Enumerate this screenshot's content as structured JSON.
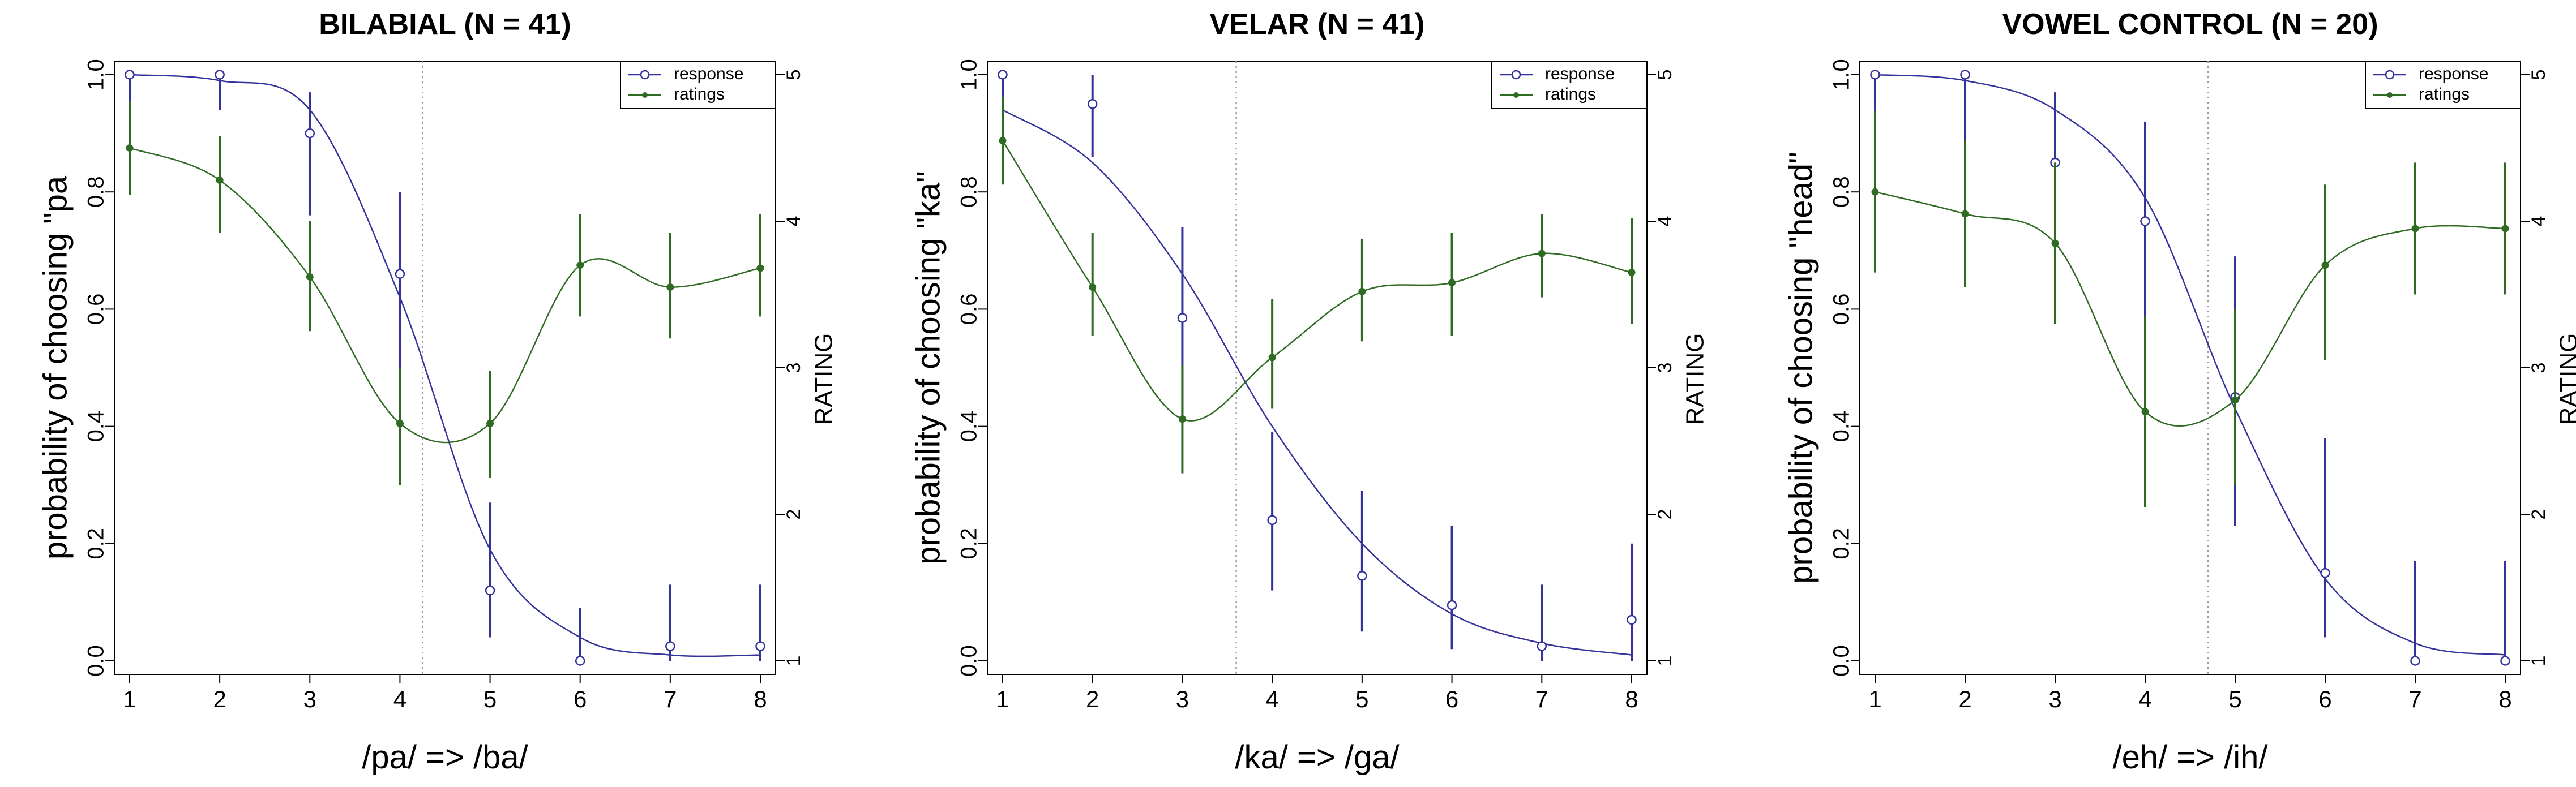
{
  "chart_data": [
    {
      "type": "line",
      "title": "BILABIAL  (N = 41)",
      "xlabel": "/pa/ => /ba/",
      "ylabel": "probability of choosing \"pa",
      "y2label": "RATING",
      "x": [
        1,
        2,
        3,
        4,
        5,
        6,
        7,
        8
      ],
      "xlim": [
        1,
        8
      ],
      "ylim": [
        0,
        1
      ],
      "y2lim": [
        1,
        5
      ],
      "yticks": [
        "0.0",
        "0.2",
        "0.4",
        "0.6",
        "0.8",
        "1.0"
      ],
      "y2ticks": [
        "1",
        "2",
        "3",
        "4",
        "5"
      ],
      "xticks": [
        "1",
        "2",
        "3",
        "4",
        "5",
        "6",
        "7",
        "8"
      ],
      "boundary_x": 4.25,
      "legend": {
        "position": "top-right",
        "entries": [
          "response",
          "ratings"
        ]
      },
      "series": [
        {
          "name": "response",
          "axis": "left",
          "color": "#33339b",
          "values": [
            1.0,
            1.0,
            0.9,
            0.66,
            0.12,
            0.0,
            0.025,
            0.025
          ],
          "err_low": [
            0.91,
            0.94,
            0.76,
            0.5,
            0.04,
            0.0,
            0.0,
            0.0
          ],
          "err_high": [
            1.0,
            1.0,
            0.97,
            0.8,
            0.27,
            0.09,
            0.13,
            0.13
          ],
          "fit": [
            1.0,
            0.99,
            0.94,
            0.62,
            0.19,
            0.04,
            0.01,
            0.01
          ]
        },
        {
          "name": "ratings",
          "axis": "right",
          "color": "#2f6b23",
          "values": [
            4.5,
            4.28,
            3.62,
            2.62,
            2.62,
            3.7,
            3.55,
            3.68
          ],
          "err_low": [
            4.18,
            3.92,
            3.25,
            2.2,
            2.25,
            3.35,
            3.2,
            3.35
          ],
          "err_high": [
            4.82,
            4.58,
            4.0,
            3.0,
            2.98,
            4.05,
            3.92,
            4.05
          ],
          "fit": [
            4.5,
            4.28,
            3.62,
            2.62,
            2.62,
            3.7,
            3.55,
            3.68
          ]
        }
      ]
    },
    {
      "type": "line",
      "title": "VELAR  (N = 41)",
      "xlabel": "/ka/ => /ga/",
      "ylabel": "probability of choosing \"ka\"",
      "y2label": "RATING",
      "x": [
        1,
        2,
        3,
        4,
        5,
        6,
        7,
        8
      ],
      "xlim": [
        1,
        8
      ],
      "ylim": [
        0,
        1
      ],
      "y2lim": [
        1,
        5
      ],
      "yticks": [
        "0.0",
        "0.2",
        "0.4",
        "0.6",
        "0.8",
        "1.0"
      ],
      "y2ticks": [
        "1",
        "2",
        "3",
        "4",
        "5"
      ],
      "xticks": [
        "1",
        "2",
        "3",
        "4",
        "5",
        "6",
        "7",
        "8"
      ],
      "boundary_x": 3.6,
      "legend": {
        "position": "top-right",
        "entries": [
          "response",
          "ratings"
        ]
      },
      "series": [
        {
          "name": "response",
          "axis": "left",
          "color": "#33339b",
          "values": [
            1.0,
            0.95,
            0.585,
            0.24,
            0.145,
            0.095,
            0.025,
            0.07
          ],
          "err_low": [
            0.91,
            0.86,
            0.42,
            0.12,
            0.05,
            0.02,
            0.0,
            0.0
          ],
          "err_high": [
            1.0,
            1.0,
            0.74,
            0.39,
            0.29,
            0.23,
            0.13,
            0.2
          ],
          "fit": [
            0.94,
            0.85,
            0.66,
            0.4,
            0.2,
            0.08,
            0.03,
            0.01
          ]
        },
        {
          "name": "ratings",
          "axis": "right",
          "color": "#2f6b23",
          "values": [
            4.55,
            3.55,
            2.65,
            3.07,
            3.52,
            3.58,
            3.78,
            3.65
          ],
          "err_low": [
            4.25,
            3.22,
            2.28,
            2.72,
            3.18,
            3.22,
            3.48,
            3.3
          ],
          "err_high": [
            4.85,
            3.92,
            3.02,
            3.47,
            3.88,
            3.92,
            4.05,
            4.02
          ],
          "fit": [
            4.55,
            3.55,
            2.65,
            3.07,
            3.52,
            3.58,
            3.78,
            3.65
          ]
        }
      ]
    },
    {
      "type": "line",
      "title": "VOWEL CONTROL  (N = 20)",
      "xlabel": "/eh/ => /ih/",
      "ylabel": "probability of choosing \"head\"",
      "y2label": "RATING",
      "x": [
        1,
        2,
        3,
        4,
        5,
        6,
        7,
        8
      ],
      "xlim": [
        1,
        8
      ],
      "ylim": [
        0,
        1
      ],
      "y2lim": [
        1,
        5
      ],
      "yticks": [
        "0.0",
        "0.2",
        "0.4",
        "0.6",
        "0.8",
        "1.0"
      ],
      "y2ticks": [
        "1",
        "2",
        "3",
        "4",
        "5"
      ],
      "xticks": [
        "1",
        "2",
        "3",
        "4",
        "5",
        "6",
        "7",
        "8"
      ],
      "boundary_x": 4.7,
      "legend": {
        "position": "top-right",
        "entries": [
          "response",
          "ratings"
        ]
      },
      "series": [
        {
          "name": "response",
          "axis": "left",
          "color": "#33339b",
          "values": [
            1.0,
            1.0,
            0.85,
            0.75,
            0.45,
            0.15,
            0.0,
            0.0
          ],
          "err_low": [
            0.83,
            0.83,
            0.62,
            0.51,
            0.23,
            0.04,
            0.0,
            0.0
          ],
          "err_high": [
            1.0,
            1.0,
            0.97,
            0.92,
            0.69,
            0.38,
            0.17,
            0.17
          ],
          "fit": [
            1.0,
            0.99,
            0.94,
            0.79,
            0.43,
            0.14,
            0.03,
            0.01
          ]
        },
        {
          "name": "ratings",
          "axis": "right",
          "color": "#2f6b23",
          "values": [
            4.2,
            4.05,
            3.85,
            2.7,
            2.78,
            3.7,
            3.95,
            3.95
          ],
          "err_low": [
            3.65,
            3.55,
            3.3,
            2.05,
            2.2,
            3.05,
            3.5,
            3.5
          ],
          "err_high": [
            4.75,
            4.55,
            4.4,
            3.35,
            3.4,
            4.25,
            4.4,
            4.4
          ],
          "fit": [
            4.2,
            4.05,
            3.85,
            2.7,
            2.78,
            3.7,
            3.95,
            3.95
          ]
        }
      ]
    }
  ]
}
